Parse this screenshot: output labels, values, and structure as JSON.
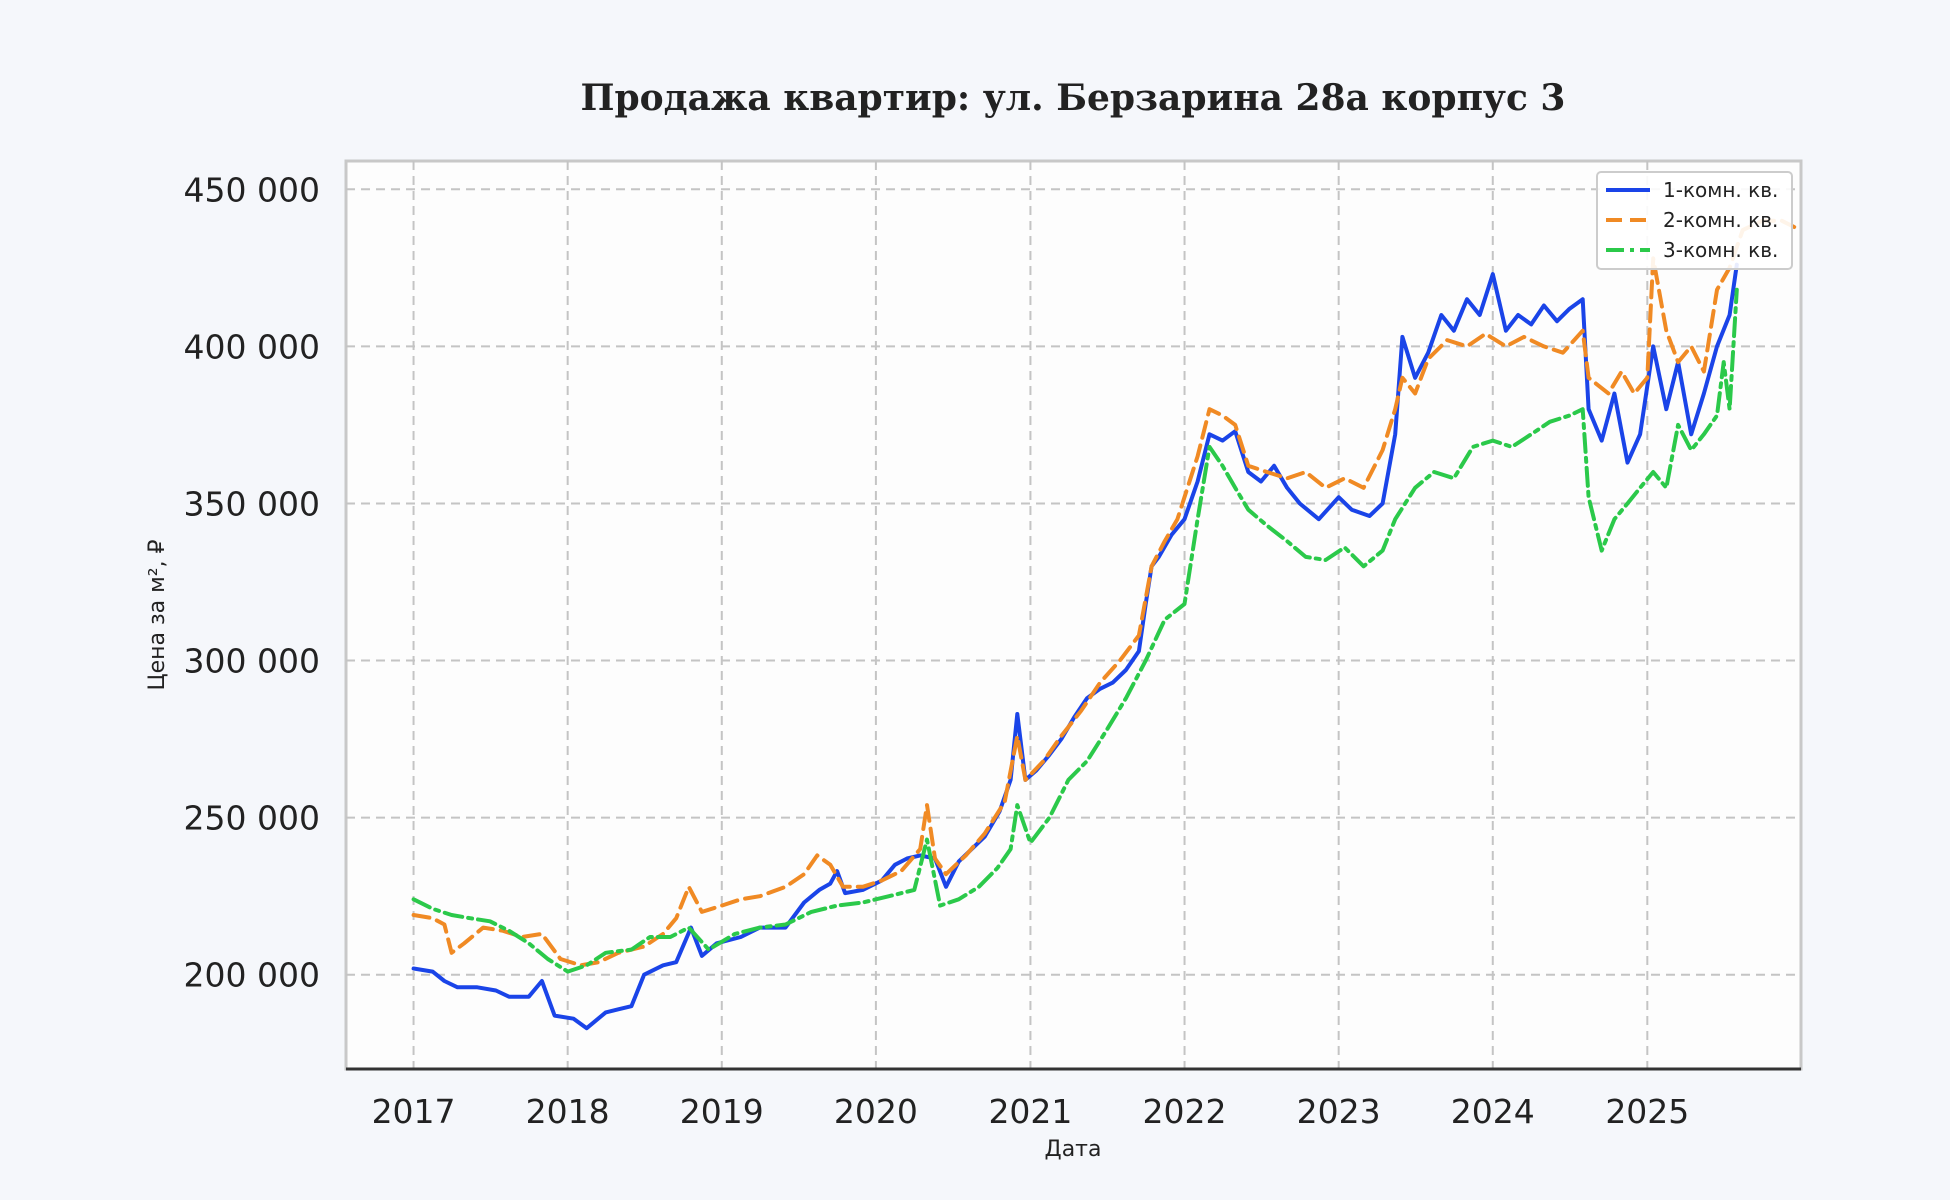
{
  "chart_data": {
    "type": "line",
    "title": "Продажа квартир: ул. Берзарина 28а корпус 3",
    "xlabel": "Дата",
    "ylabel": "Цена за м², ₽",
    "xlim": [
      "2016-07-25",
      "2025-12-31"
    ],
    "ylim": [
      170000,
      459000
    ],
    "x_ticks": [
      "2017",
      "2018",
      "2019",
      "2020",
      "2021",
      "2022",
      "2023",
      "2024",
      "2025"
    ],
    "y_ticks": [
      "200 000",
      "250 000",
      "300 000",
      "350 000",
      "400 000",
      "450 000"
    ],
    "grid": true,
    "legend_position": "top-right",
    "series": [
      {
        "name": "1-комн. кв.",
        "color": "#1a44e8",
        "dash": "solid",
        "points": [
          [
            "2017-01-01",
            202000
          ],
          [
            "2017-02-15",
            201000
          ],
          [
            "2017-03-15",
            198000
          ],
          [
            "2017-04-15",
            196000
          ],
          [
            "2017-06-01",
            196000
          ],
          [
            "2017-07-15",
            195000
          ],
          [
            "2017-08-15",
            193000
          ],
          [
            "2017-10-01",
            193000
          ],
          [
            "2017-11-01",
            198000
          ],
          [
            "2017-12-01",
            187000
          ],
          [
            "2018-01-15",
            186000
          ],
          [
            "2018-02-15",
            183000
          ],
          [
            "2018-04-01",
            188000
          ],
          [
            "2018-05-01",
            189000
          ],
          [
            "2018-06-01",
            190000
          ],
          [
            "2018-07-01",
            200000
          ],
          [
            "2018-08-15",
            203000
          ],
          [
            "2018-09-15",
            204000
          ],
          [
            "2018-10-20",
            215000
          ],
          [
            "2018-11-15",
            206000
          ],
          [
            "2018-12-20",
            210000
          ],
          [
            "2019-02-15",
            212000
          ],
          [
            "2019-04-01",
            215000
          ],
          [
            "2019-06-01",
            215000
          ],
          [
            "2019-07-15",
            223000
          ],
          [
            "2019-08-20",
            227000
          ],
          [
            "2019-09-15",
            229000
          ],
          [
            "2019-10-01",
            233000
          ],
          [
            "2019-10-20",
            226000
          ],
          [
            "2019-12-01",
            227000
          ],
          [
            "2020-01-15",
            230000
          ],
          [
            "2020-02-15",
            235000
          ],
          [
            "2020-03-15",
            237000
          ],
          [
            "2020-04-15",
            238000
          ],
          [
            "2020-05-20",
            237000
          ],
          [
            "2020-06-15",
            228000
          ],
          [
            "2020-07-15",
            236000
          ],
          [
            "2020-08-15",
            240000
          ],
          [
            "2020-09-15",
            244000
          ],
          [
            "2020-10-20",
            252000
          ],
          [
            "2020-11-15",
            262000
          ],
          [
            "2020-12-01",
            283000
          ],
          [
            "2020-12-20",
            262000
          ],
          [
            "2021-01-15",
            265000
          ],
          [
            "2021-02-15",
            270000
          ],
          [
            "2021-03-15",
            275000
          ],
          [
            "2021-04-15",
            282000
          ],
          [
            "2021-05-15",
            288000
          ],
          [
            "2021-06-15",
            291000
          ],
          [
            "2021-07-15",
            293000
          ],
          [
            "2021-08-15",
            297000
          ],
          [
            "2021-09-15",
            303000
          ],
          [
            "2021-10-01",
            318000
          ],
          [
            "2021-10-15",
            330000
          ],
          [
            "2021-11-01",
            333000
          ],
          [
            "2021-12-01",
            340000
          ],
          [
            "2022-01-01",
            345000
          ],
          [
            "2022-02-01",
            357000
          ],
          [
            "2022-03-01",
            372000
          ],
          [
            "2022-04-01",
            370000
          ],
          [
            "2022-05-01",
            373000
          ],
          [
            "2022-06-01",
            360000
          ],
          [
            "2022-07-01",
            357000
          ],
          [
            "2022-08-01",
            362000
          ],
          [
            "2022-09-01",
            355000
          ],
          [
            "2022-10-01",
            350000
          ],
          [
            "2022-11-15",
            345000
          ],
          [
            "2023-01-01",
            352000
          ],
          [
            "2023-02-01",
            348000
          ],
          [
            "2023-03-15",
            346000
          ],
          [
            "2023-04-15",
            350000
          ],
          [
            "2023-05-15",
            372000
          ],
          [
            "2023-06-01",
            403000
          ],
          [
            "2023-07-01",
            390000
          ],
          [
            "2023-08-01",
            398000
          ],
          [
            "2023-09-01",
            410000
          ],
          [
            "2023-10-01",
            405000
          ],
          [
            "2023-11-01",
            415000
          ],
          [
            "2023-12-01",
            410000
          ],
          [
            "2024-01-01",
            423000
          ],
          [
            "2024-02-01",
            405000
          ],
          [
            "2024-03-01",
            410000
          ],
          [
            "2024-04-01",
            407000
          ],
          [
            "2024-05-01",
            413000
          ],
          [
            "2024-06-01",
            408000
          ],
          [
            "2024-07-01",
            412000
          ],
          [
            "2024-08-01",
            415000
          ],
          [
            "2024-08-15",
            380000
          ],
          [
            "2024-09-15",
            370000
          ],
          [
            "2024-10-15",
            385000
          ],
          [
            "2024-11-15",
            363000
          ],
          [
            "2024-12-15",
            372000
          ],
          [
            "2025-01-15",
            400000
          ],
          [
            "2025-02-15",
            380000
          ],
          [
            "2025-03-15",
            395000
          ],
          [
            "2025-04-15",
            372000
          ],
          [
            "2025-05-15",
            385000
          ],
          [
            "2025-06-15",
            400000
          ],
          [
            "2025-07-15",
            410000
          ],
          [
            "2025-08-01",
            426000
          ]
        ]
      },
      {
        "name": "2-комн. кв.",
        "color": "#f08a24",
        "dash": "dashed",
        "points": [
          [
            "2017-01-01",
            219000
          ],
          [
            "2017-02-15",
            218000
          ],
          [
            "2017-03-15",
            216000
          ],
          [
            "2017-04-01",
            207000
          ],
          [
            "2017-05-01",
            210000
          ],
          [
            "2017-06-15",
            215000
          ],
          [
            "2017-08-01",
            214000
          ],
          [
            "2017-09-15",
            212000
          ],
          [
            "2017-11-01",
            213000
          ],
          [
            "2017-12-15",
            205000
          ],
          [
            "2018-02-01",
            203000
          ],
          [
            "2018-03-15",
            204000
          ],
          [
            "2018-05-01",
            207000
          ],
          [
            "2018-07-01",
            209000
          ],
          [
            "2018-08-15",
            213000
          ],
          [
            "2018-09-15",
            218000
          ],
          [
            "2018-10-15",
            228000
          ],
          [
            "2018-11-15",
            220000
          ],
          [
            "2019-01-01",
            222000
          ],
          [
            "2019-02-15",
            224000
          ],
          [
            "2019-04-01",
            225000
          ],
          [
            "2019-06-01",
            228000
          ],
          [
            "2019-07-15",
            232000
          ],
          [
            "2019-08-15",
            238000
          ],
          [
            "2019-09-15",
            235000
          ],
          [
            "2019-10-15",
            228000
          ],
          [
            "2019-12-01",
            228000
          ],
          [
            "2020-01-15",
            230000
          ],
          [
            "2020-03-01",
            233000
          ],
          [
            "2020-04-15",
            240000
          ],
          [
            "2020-05-01",
            254000
          ],
          [
            "2020-05-20",
            237000
          ],
          [
            "2020-06-15",
            232000
          ],
          [
            "2020-08-01",
            238000
          ],
          [
            "2020-09-15",
            245000
          ],
          [
            "2020-11-01",
            255000
          ],
          [
            "2020-12-01",
            276000
          ],
          [
            "2020-12-20",
            262000
          ],
          [
            "2021-02-01",
            268000
          ],
          [
            "2021-03-15",
            276000
          ],
          [
            "2021-05-01",
            284000
          ],
          [
            "2021-06-15",
            293000
          ],
          [
            "2021-08-01",
            300000
          ],
          [
            "2021-09-15",
            308000
          ],
          [
            "2021-10-15",
            330000
          ],
          [
            "2021-11-15",
            338000
          ],
          [
            "2021-12-15",
            345000
          ],
          [
            "2022-02-01",
            365000
          ],
          [
            "2022-03-01",
            380000
          ],
          [
            "2022-04-01",
            378000
          ],
          [
            "2022-05-01",
            375000
          ],
          [
            "2022-06-01",
            362000
          ],
          [
            "2022-07-15",
            360000
          ],
          [
            "2022-09-01",
            358000
          ],
          [
            "2022-10-15",
            360000
          ],
          [
            "2022-12-01",
            355000
          ],
          [
            "2023-01-15",
            358000
          ],
          [
            "2023-03-01",
            355000
          ],
          [
            "2023-04-15",
            367000
          ],
          [
            "2023-05-15",
            380000
          ],
          [
            "2023-06-01",
            390000
          ],
          [
            "2023-07-01",
            385000
          ],
          [
            "2023-08-01",
            396000
          ],
          [
            "2023-09-15",
            402000
          ],
          [
            "2023-11-01",
            400000
          ],
          [
            "2023-12-15",
            404000
          ],
          [
            "2024-02-01",
            400000
          ],
          [
            "2024-03-15",
            403000
          ],
          [
            "2024-05-01",
            400000
          ],
          [
            "2024-06-15",
            398000
          ],
          [
            "2024-08-01",
            405000
          ],
          [
            "2024-08-15",
            390000
          ],
          [
            "2024-10-01",
            385000
          ],
          [
            "2024-11-01",
            392000
          ],
          [
            "2024-12-01",
            385000
          ],
          [
            "2025-01-01",
            390000
          ],
          [
            "2025-01-15",
            428000
          ],
          [
            "2025-02-15",
            405000
          ],
          [
            "2025-03-15",
            395000
          ],
          [
            "2025-04-15",
            400000
          ],
          [
            "2025-05-15",
            392000
          ],
          [
            "2025-06-15",
            418000
          ],
          [
            "2025-07-15",
            425000
          ],
          [
            "2025-08-15",
            437000
          ],
          [
            "2025-10-01",
            440000
          ],
          [
            "2025-11-15",
            440000
          ],
          [
            "2025-12-15",
            438000
          ]
        ]
      },
      {
        "name": "3-комн. кв.",
        "color": "#2bc94a",
        "dash": "dashdot",
        "points": [
          [
            "2017-01-01",
            224000
          ],
          [
            "2017-02-15",
            221000
          ],
          [
            "2017-04-01",
            219000
          ],
          [
            "2017-05-15",
            218000
          ],
          [
            "2017-07-01",
            217000
          ],
          [
            "2017-08-15",
            214000
          ],
          [
            "2017-10-01",
            210000
          ],
          [
            "2017-11-15",
            205000
          ],
          [
            "2018-01-01",
            201000
          ],
          [
            "2018-02-15",
            203000
          ],
          [
            "2018-04-01",
            207000
          ],
          [
            "2018-06-01",
            208000
          ],
          [
            "2018-07-15",
            212000
          ],
          [
            "2018-09-01",
            212000
          ],
          [
            "2018-10-15",
            215000
          ],
          [
            "2018-12-01",
            208000
          ],
          [
            "2019-02-01",
            213000
          ],
          [
            "2019-04-01",
            215000
          ],
          [
            "2019-06-01",
            216000
          ],
          [
            "2019-08-01",
            220000
          ],
          [
            "2019-10-01",
            222000
          ],
          [
            "2019-12-01",
            223000
          ],
          [
            "2020-02-01",
            225000
          ],
          [
            "2020-04-01",
            227000
          ],
          [
            "2020-05-01",
            243000
          ],
          [
            "2020-06-01",
            222000
          ],
          [
            "2020-07-15",
            224000
          ],
          [
            "2020-09-01",
            228000
          ],
          [
            "2020-10-15",
            234000
          ],
          [
            "2020-11-15",
            240000
          ],
          [
            "2020-12-01",
            254000
          ],
          [
            "2021-01-01",
            242000
          ],
          [
            "2021-02-15",
            250000
          ],
          [
            "2021-04-01",
            262000
          ],
          [
            "2021-05-15",
            268000
          ],
          [
            "2021-07-01",
            278000
          ],
          [
            "2021-08-15",
            288000
          ],
          [
            "2021-10-01",
            300000
          ],
          [
            "2021-11-15",
            313000
          ],
          [
            "2022-01-01",
            318000
          ],
          [
            "2022-02-01",
            345000
          ],
          [
            "2022-03-01",
            368000
          ],
          [
            "2022-04-01",
            362000
          ],
          [
            "2022-05-01",
            355000
          ],
          [
            "2022-06-01",
            348000
          ],
          [
            "2022-07-15",
            343000
          ],
          [
            "2022-09-01",
            338000
          ],
          [
            "2022-10-15",
            333000
          ],
          [
            "2022-12-01",
            332000
          ],
          [
            "2023-01-15",
            336000
          ],
          [
            "2023-03-01",
            330000
          ],
          [
            "2023-04-15",
            335000
          ],
          [
            "2023-05-15",
            345000
          ],
          [
            "2023-07-01",
            355000
          ],
          [
            "2023-08-15",
            360000
          ],
          [
            "2023-10-01",
            358000
          ],
          [
            "2023-11-15",
            368000
          ],
          [
            "2024-01-01",
            370000
          ],
          [
            "2024-02-15",
            368000
          ],
          [
            "2024-04-01",
            372000
          ],
          [
            "2024-05-15",
            376000
          ],
          [
            "2024-07-01",
            378000
          ],
          [
            "2024-08-01",
            380000
          ],
          [
            "2024-08-15",
            352000
          ],
          [
            "2024-09-15",
            335000
          ],
          [
            "2024-10-15",
            345000
          ],
          [
            "2024-11-15",
            350000
          ],
          [
            "2024-12-15",
            355000
          ],
          [
            "2025-01-15",
            360000
          ],
          [
            "2025-02-15",
            355000
          ],
          [
            "2025-03-15",
            375000
          ],
          [
            "2025-04-15",
            367000
          ],
          [
            "2025-05-15",
            372000
          ],
          [
            "2025-06-15",
            378000
          ],
          [
            "2025-07-01",
            395000
          ],
          [
            "2025-07-15",
            380000
          ],
          [
            "2025-08-01",
            418000
          ]
        ]
      }
    ]
  }
}
